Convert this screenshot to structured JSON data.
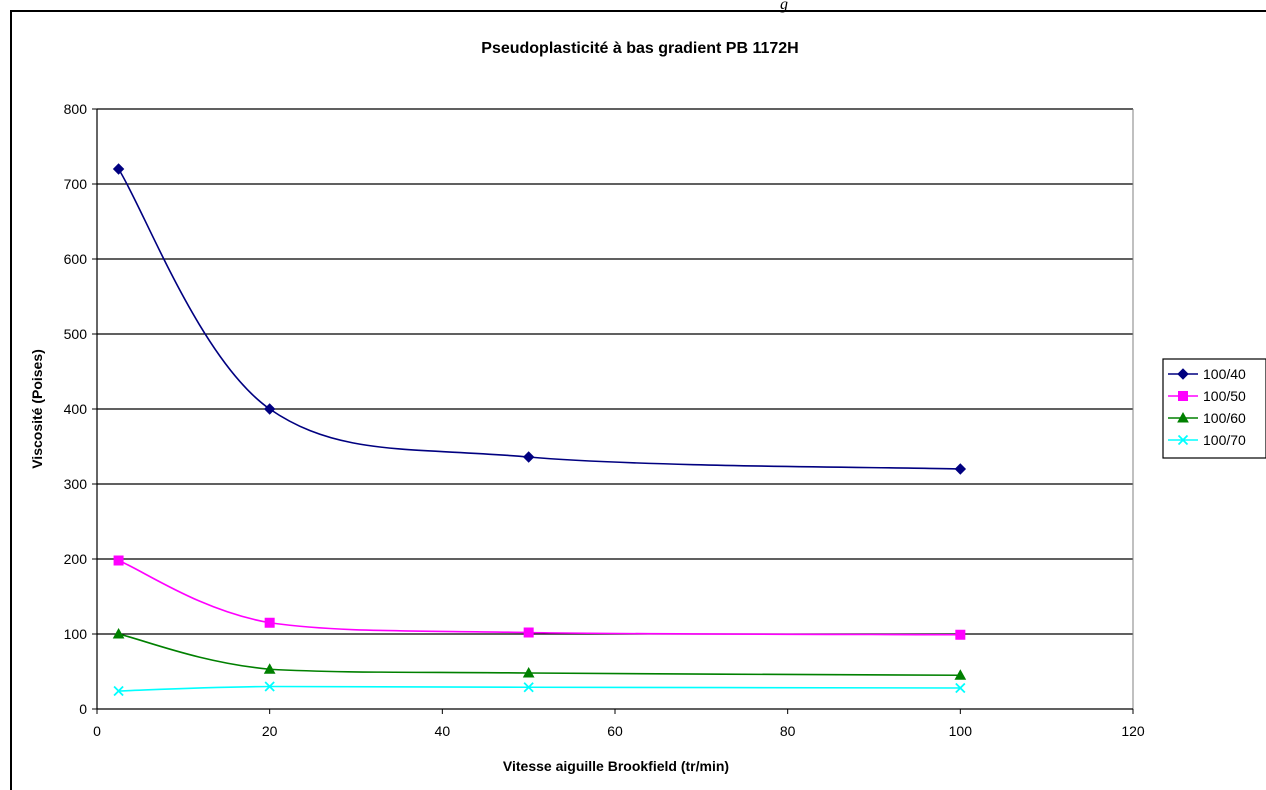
{
  "page": {
    "header_fragment": "g"
  },
  "chart_data": {
    "type": "scatter",
    "title": "Pseudoplasticité à bas gradient PB 1172H",
    "xlabel": "Vitesse aiguille Brookfield (tr/min)",
    "ylabel": "Viscosité (Poises)",
    "xlim": [
      0,
      120
    ],
    "ylim": [
      0,
      800
    ],
    "x_ticks": [
      0,
      20,
      40,
      60,
      80,
      100,
      120
    ],
    "y_ticks": [
      0,
      100,
      200,
      300,
      400,
      500,
      600,
      700,
      800
    ],
    "grid": "horizontal major",
    "legend_position": "right",
    "series": [
      {
        "name": "100/40",
        "color": "#000080",
        "marker": "diamond",
        "x": [
          2.5,
          20,
          50,
          100
        ],
        "y": [
          720,
          400,
          336,
          320
        ]
      },
      {
        "name": "100/50",
        "color": "#ff00ff",
        "marker": "square",
        "x": [
          2.5,
          20,
          50,
          100
        ],
        "y": [
          198,
          115,
          102,
          99
        ]
      },
      {
        "name": "100/60",
        "color": "#008000",
        "marker": "triangle",
        "x": [
          2.5,
          20,
          50,
          100
        ],
        "y": [
          100,
          53,
          48,
          45
        ]
      },
      {
        "name": "100/70",
        "color": "#00ffff",
        "marker": "x",
        "x": [
          2.5,
          20,
          50,
          100
        ],
        "y": [
          24,
          30,
          29,
          28
        ]
      }
    ]
  }
}
